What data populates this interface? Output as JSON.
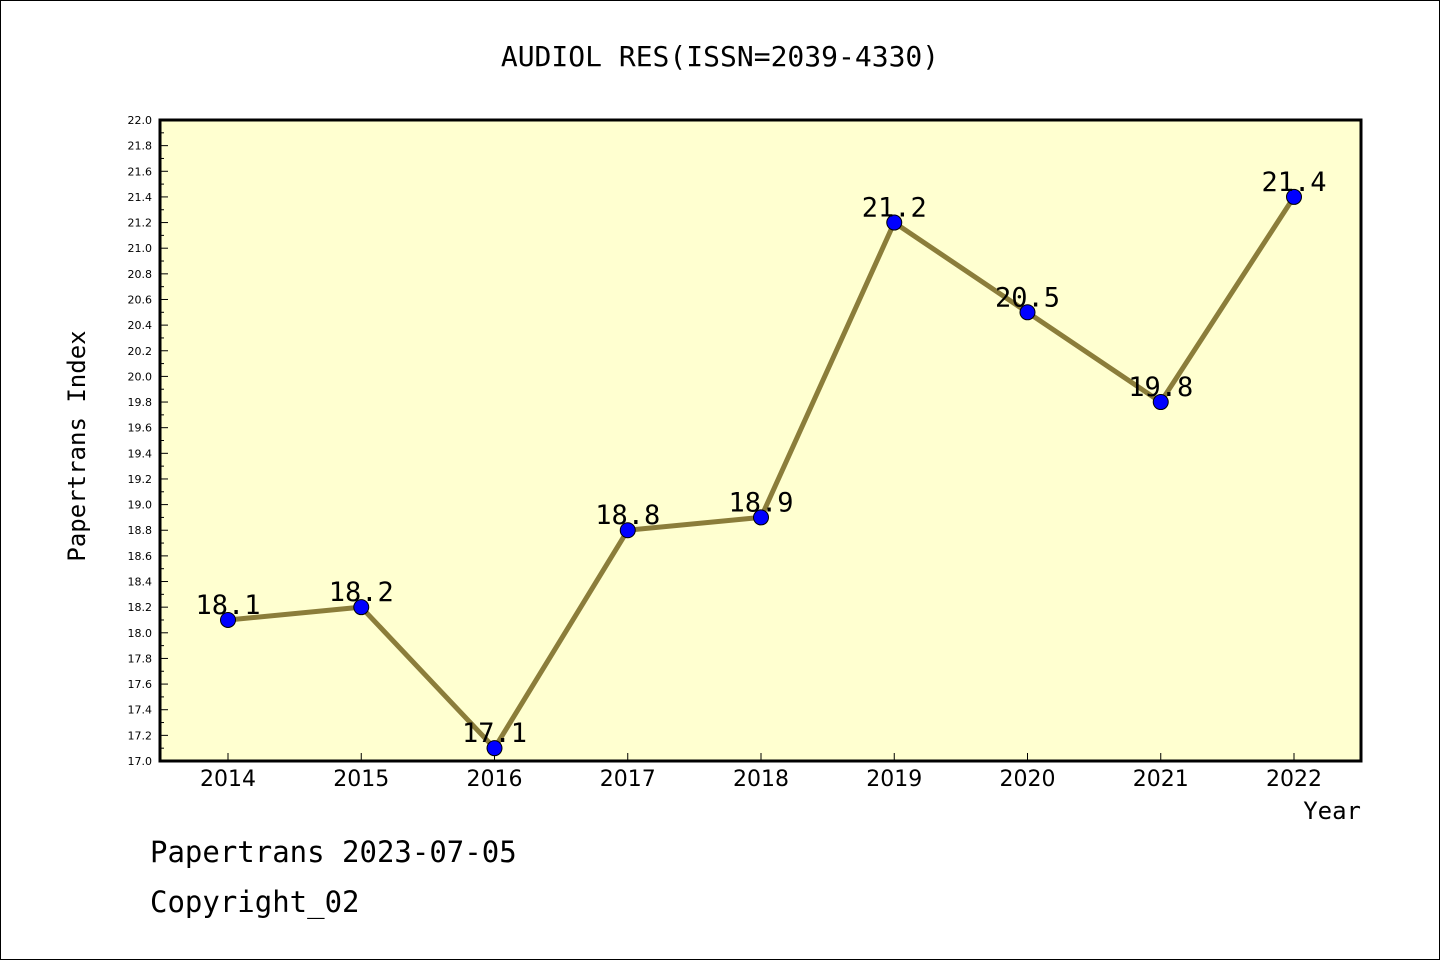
{
  "chart_data": {
    "type": "line",
    "title": "AUDIOL RES(ISSN=2039-4330)",
    "xlabel": "Year",
    "ylabel": "Papertrans Index",
    "x": [
      "2014",
      "2015",
      "2016",
      "2017",
      "2018",
      "2019",
      "2020",
      "2021",
      "2022"
    ],
    "series": [
      {
        "values": [
          18.1,
          18.2,
          17.1,
          18.8,
          18.9,
          21.2,
          20.5,
          19.8,
          21.4
        ],
        "labels": [
          "18.1",
          "18.2",
          "17.1",
          "18.8",
          "18.9",
          "21.2",
          "20.5",
          "19.8",
          "21.4"
        ]
      }
    ],
    "ylim": [
      17.0,
      22.0
    ],
    "yticks": [
      "17.0",
      "17.2",
      "17.4",
      "17.6",
      "17.8",
      "18.0",
      "18.2",
      "18.4",
      "18.6",
      "18.8",
      "19.0",
      "19.2",
      "19.4",
      "19.6",
      "19.8",
      "20.0",
      "20.2",
      "20.4",
      "20.6",
      "20.8",
      "21.0",
      "21.2",
      "21.4",
      "21.6",
      "21.8",
      "22.0"
    ],
    "grid": false,
    "colors": {
      "plot_background": "#ffffd0",
      "line": "#8b7d3a",
      "marker": "#0000ff",
      "axis": "#000000"
    }
  },
  "footer": {
    "line1": "Papertrans 2023-07-05",
    "line2": "Copyright_02"
  }
}
